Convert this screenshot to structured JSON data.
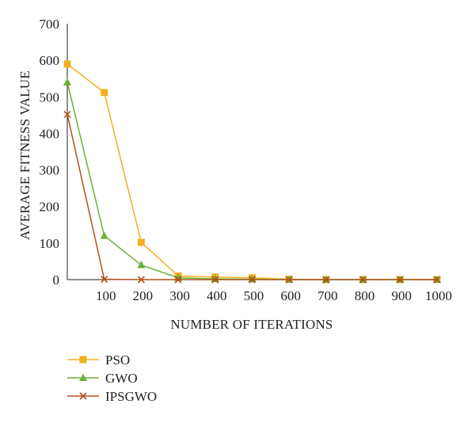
{
  "chart_data": {
    "type": "line",
    "title": "",
    "xlabel": "NUMBER OF ITERATIONS",
    "ylabel": "AVERAGE FITNESS VALUE",
    "x": [
      0,
      100,
      200,
      300,
      400,
      500,
      600,
      700,
      800,
      900,
      1000
    ],
    "x_tick_labels": [
      "100",
      "200",
      "300",
      "400",
      "500",
      "600",
      "700",
      "800",
      "900",
      "1000"
    ],
    "y_tick_labels": [
      "0",
      "100",
      "200",
      "300",
      "400",
      "500",
      "600",
      "700"
    ],
    "xlim": [
      0,
      1000
    ],
    "ylim": [
      0,
      700
    ],
    "grid": false,
    "legend_position": "bottom-left",
    "series": [
      {
        "name": "PSO",
        "color": "#F2B01E",
        "marker": "square",
        "values": [
          590,
          512,
          102,
          10,
          7,
          5,
          1,
          0,
          0,
          0,
          0
        ]
      },
      {
        "name": "GWO",
        "color": "#6AB23A",
        "marker": "triangle",
        "values": [
          540,
          120,
          40,
          5,
          2,
          1,
          0,
          0,
          0,
          0,
          0
        ]
      },
      {
        "name": "IPSGWO",
        "color": "#B3501C",
        "marker": "x",
        "values": [
          452,
          1,
          0,
          0,
          0,
          0,
          0,
          0,
          0,
          0,
          0
        ]
      }
    ]
  }
}
